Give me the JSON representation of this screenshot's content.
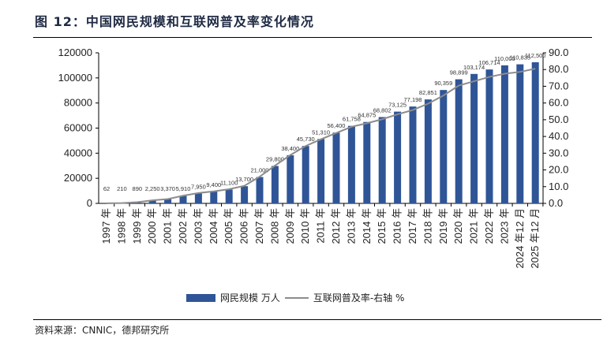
{
  "title": "图 12：中国网民规模和互联网普及率变化情况",
  "source": "资料来源：CNNIC，德邦研究所",
  "colors": {
    "bar": "#2f5597",
    "line": "#8c8c8c"
  },
  "chart_data": {
    "type": "bar+line",
    "categories": [
      "1997 年",
      "1998 年",
      "1999 年",
      "2000 年",
      "2001 年",
      "2002 年",
      "2003 年",
      "2004 年",
      "2005 年",
      "2006 年",
      "2007 年",
      "2008 年",
      "2009 年",
      "2010 年",
      "2011 年",
      "2012 年",
      "2013 年",
      "2014 年",
      "2015 年",
      "2016 年",
      "2017 年",
      "2018 年",
      "2019 年",
      "2020 年",
      "2021 年",
      "2022 年",
      "2023 年",
      "2024 年12 月",
      "2025 年12 月"
    ],
    "series": [
      {
        "name": "网民规模 万人",
        "type": "bar",
        "axis": "left",
        "values": [
          62,
          210,
          890,
          2250,
          3370,
          5910,
          7950,
          9400,
          11100,
          13700,
          21000,
          29800,
          38400,
          45730,
          51310,
          56400,
          61758,
          64875,
          68802,
          73125,
          77198,
          82851,
          90359,
          98899,
          103174,
          106714,
          110005,
          110835,
          112500
        ],
        "labels": [
          "62",
          "210",
          "890",
          "2,250",
          "3,370",
          "5,910",
          "7,950",
          "9,400",
          "11,100",
          "13,700",
          "21,000",
          "29,800",
          "38,400",
          "45,730",
          "51,310",
          "56,400",
          "61,758",
          "64,875",
          "68,802",
          "73,125",
          "77,198",
          "82,851",
          "90,359",
          "98,899",
          "103,174",
          "106,714",
          "110,005",
          "110,835",
          "112,500"
        ]
      },
      {
        "name": "互联网普及率-右轴 %",
        "type": "line",
        "axis": "right",
        "values": [
          0.05,
          0.17,
          0.7,
          1.8,
          2.6,
          4.6,
          6.2,
          7.2,
          8.5,
          10.5,
          16.0,
          22.6,
          28.9,
          34.3,
          38.3,
          42.1,
          45.8,
          47.9,
          50.3,
          53.2,
          55.8,
          59.6,
          64.5,
          70.4,
          73.0,
          75.6,
          77.5,
          78.6,
          80.5
        ]
      }
    ],
    "yleft": {
      "range": [
        0,
        120000
      ],
      "ticks": [
        "0",
        "20000",
        "40000",
        "60000",
        "80000",
        "100000",
        "120000"
      ]
    },
    "yright": {
      "range": [
        0,
        90
      ],
      "ticks": [
        "0.0",
        "10.0",
        "20.0",
        "30.0",
        "40.0",
        "50.0",
        "60.0",
        "70.0",
        "80.0",
        "90.0"
      ]
    },
    "grid": false,
    "legend": "bottom"
  }
}
